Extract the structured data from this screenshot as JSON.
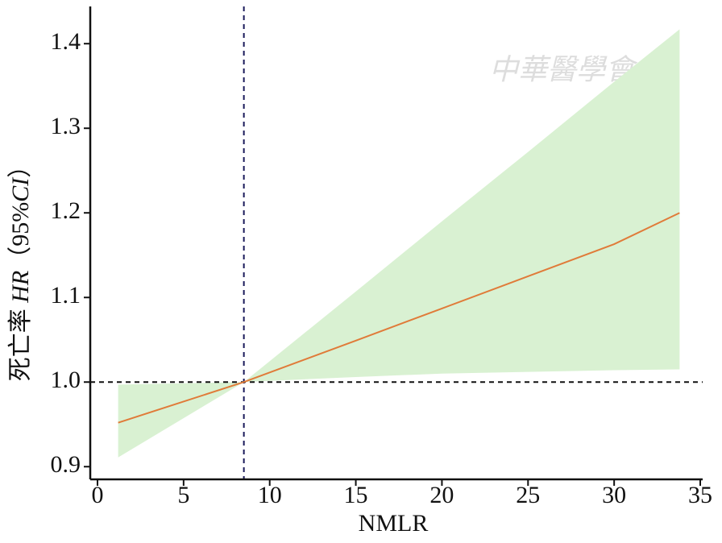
{
  "chart_data": {
    "type": "line",
    "xlabel": "NMLR",
    "ylabel": [
      "死亡率 ",
      "HR",
      "（95%",
      "CI",
      "）"
    ],
    "watermark": "中華醫學會",
    "x": [
      1.2,
      8.5,
      15,
      20,
      25,
      30,
      33.8
    ],
    "series": [
      {
        "color": "#e07b39",
        "values": [
          0.952,
          1.0,
          1.049,
          1.087,
          1.125,
          1.163,
          1.2
        ]
      }
    ],
    "band": {
      "color": "#d9f1d2",
      "lower": [
        0.911,
        1.0,
        1.006,
        1.01,
        1.012,
        1.014,
        1.015
      ],
      "upper": [
        0.997,
        1.0,
        1.107,
        1.19,
        1.272,
        1.355,
        1.417
      ]
    },
    "reference_x": 8.5,
    "reference_y": 1,
    "xlim": [
      -0.42,
      35.14
    ],
    "ylim": [
      0.885,
      1.444
    ],
    "xticks": [
      0,
      5,
      10,
      15,
      20,
      25,
      30,
      35
    ],
    "yticks": [
      0.9,
      {
        "value": 1,
        "label": "1.0"
      },
      1.1,
      1.2,
      1.3,
      1.4
    ]
  }
}
